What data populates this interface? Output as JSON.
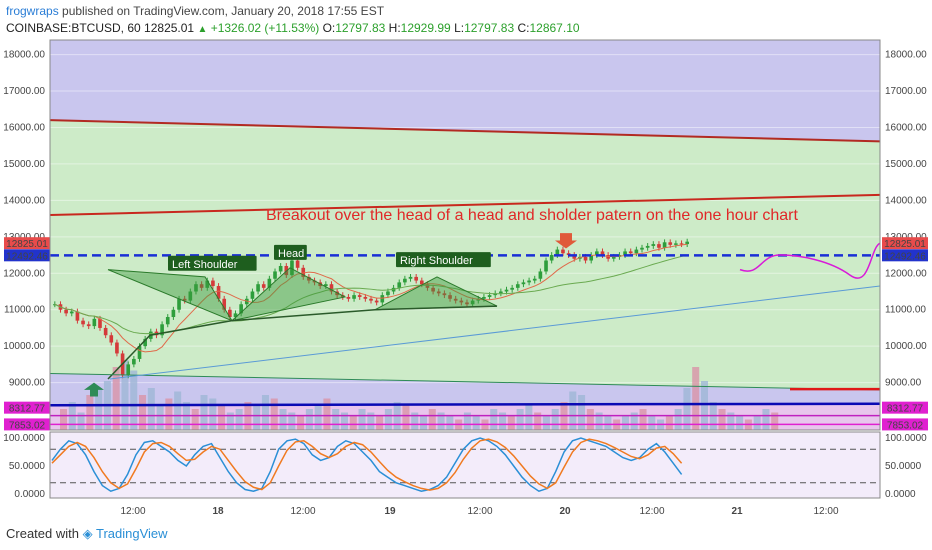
{
  "header": {
    "author": "frogwraps",
    "published": "published on TradingView.com, January 20, 2018 17:55 EST",
    "symbol": "COINBASE:BTCUSD, 60",
    "last": "12825.01",
    "change": "+1326.02 (+11.53%)",
    "o_label": "O:",
    "o": "12797.83",
    "h_label": "H:",
    "h": "12929.99",
    "l_label": "L:",
    "l": "12797.83",
    "c_label": "C:",
    "c": "12867.10"
  },
  "footer": {
    "created_with": "Created with",
    "brand": "TradingView"
  },
  "colors": {
    "up": "#2e9e3c",
    "down": "#d43a3a",
    "bg_top": "#c9c6ee",
    "bg_mid": "#cdebc8"
  },
  "chart_data": [
    {
      "type": "candlestick",
      "xlabels": [
        "12:00",
        "18",
        "12:00",
        "19",
        "12:00",
        "20",
        "12:00",
        "21",
        "12:00"
      ],
      "y_ticks": [
        "18000.00",
        "17000.00",
        "16000.00",
        "15000.00",
        "14000.00",
        "13000.00",
        "12000.00",
        "11000.00",
        "10000.00",
        "9000.00"
      ],
      "ylim": [
        7700,
        18400
      ],
      "price_labels": [
        {
          "value": 12825.01,
          "text": "12825.01",
          "color": "#e84b4b"
        },
        {
          "value": 12492.46,
          "text": "12492.46",
          "color": "#2233cc"
        },
        {
          "value": 8312.77,
          "text": "8312.77",
          "color": "#e020d0"
        },
        {
          "value": 7853.02,
          "text": "7853.02",
          "color": "#e020d0"
        }
      ],
      "annotations": {
        "breakout": "Breakout over the head of a head and sholder patern on the one hour chart",
        "left_shoulder": "Left Shoulder",
        "head": "Head",
        "right_shoulder": "Right Shoulder"
      },
      "trendlines": [
        {
          "name": "upper-channel",
          "from": 16200,
          "to": 15620,
          "color": "#b22a22"
        },
        {
          "name": "resistance",
          "from": 13600,
          "to": 14150,
          "color": "#c8281e"
        },
        {
          "name": "lower-channel",
          "from": 9250,
          "to": 8800,
          "color": "#2e8b57"
        },
        {
          "name": "support",
          "from": 8380,
          "to": 8420,
          "color": "#0a0ab4"
        },
        {
          "name": "neckline-breakout",
          "from": 12492.46,
          "to": 12492.46,
          "color": "#1a2fd6"
        }
      ],
      "close_series": [
        11150,
        11000,
        10900,
        10950,
        10700,
        10600,
        10550,
        10750,
        10500,
        10300,
        10100,
        9800,
        9200,
        9500,
        9650,
        10000,
        10200,
        10400,
        10300,
        10600,
        10800,
        11000,
        11300,
        11250,
        11500,
        11700,
        11600,
        11800,
        11650,
        11300,
        11000,
        10800,
        10900,
        11150,
        11300,
        11500,
        11700,
        11600,
        11850,
        12050,
        12200,
        11950,
        12350,
        12150,
        11900,
        11800,
        11750,
        11650,
        11700,
        11500,
        11400,
        11350,
        11300,
        11400,
        11350,
        11300,
        11250,
        11200,
        11400,
        11500,
        11600,
        11750,
        11850,
        11900,
        11800,
        11700,
        11600,
        11500,
        11450,
        11400,
        11300,
        11250,
        11200,
        11150,
        11250,
        11300,
        11350,
        11400,
        11450,
        11500,
        11550,
        11600,
        11700,
        11750,
        11800,
        11850,
        12050,
        12350,
        12500,
        12650,
        12550,
        12500,
        12400,
        12450,
        12350,
        12500,
        12600,
        12500,
        12400,
        12450,
        12500,
        12600,
        12550,
        12650,
        12700,
        12750,
        12800,
        12700,
        12850,
        12780,
        12820,
        12800,
        12867.1
      ],
      "volume": [
        0.3,
        0.4,
        0.25,
        0.5,
        0.6,
        0.7,
        0.9,
        1.0,
        0.85,
        0.5,
        0.6,
        0.35,
        0.45,
        0.55,
        0.4,
        0.3,
        0.5,
        0.45,
        0.35,
        0.25,
        0.3,
        0.4,
        0.35,
        0.5,
        0.45,
        0.3,
        0.25,
        0.2,
        0.3,
        0.35,
        0.45,
        0.3,
        0.25,
        0.2,
        0.3,
        0.25,
        0.2,
        0.3,
        0.4,
        0.35,
        0.25,
        0.2,
        0.3,
        0.25,
        0.2,
        0.15,
        0.25,
        0.2,
        0.15,
        0.3,
        0.25,
        0.2,
        0.3,
        0.35,
        0.25,
        0.2,
        0.3,
        0.4,
        0.55,
        0.5,
        0.3,
        0.25,
        0.2,
        0.15,
        0.2,
        0.25,
        0.3,
        0.2,
        0.15,
        0.2,
        0.3,
        0.6,
        0.9,
        0.7,
        0.4,
        0.3,
        0.25,
        0.2,
        0.15,
        0.2,
        0.3,
        0.25
      ],
      "stoch_ticks": [
        "100.0000",
        "50.0000",
        "0.0000"
      ],
      "stoch_k": [
        60,
        80,
        95,
        90,
        70,
        40,
        15,
        5,
        10,
        35,
        70,
        92,
        95,
        85,
        75,
        60,
        50,
        70,
        85,
        90,
        65,
        40,
        20,
        8,
        5,
        10,
        40,
        80,
        95,
        98,
        90,
        70,
        60,
        65,
        85,
        95,
        90,
        75,
        60,
        40,
        30,
        20,
        15,
        10,
        5,
        8,
        15,
        30,
        55,
        80,
        95,
        100,
        95,
        85,
        70,
        50,
        30,
        15,
        5,
        10,
        40,
        75,
        95,
        100,
        95,
        90,
        85,
        75,
        65,
        60,
        65,
        80,
        90,
        75,
        55,
        35
      ],
      "stoch_d": [
        55,
        70,
        85,
        92,
        85,
        65,
        40,
        20,
        10,
        18,
        45,
        75,
        90,
        92,
        85,
        72,
        60,
        62,
        75,
        85,
        80,
        60,
        40,
        22,
        12,
        8,
        20,
        50,
        78,
        93,
        95,
        85,
        72,
        65,
        72,
        85,
        92,
        88,
        75,
        58,
        42,
        30,
        22,
        15,
        10,
        7,
        10,
        20,
        38,
        62,
        82,
        95,
        98,
        93,
        83,
        68,
        50,
        32,
        18,
        10,
        20,
        48,
        75,
        92,
        98,
        95,
        90,
        83,
        75,
        67,
        63,
        70,
        82,
        85,
        72,
        55
      ]
    }
  ]
}
